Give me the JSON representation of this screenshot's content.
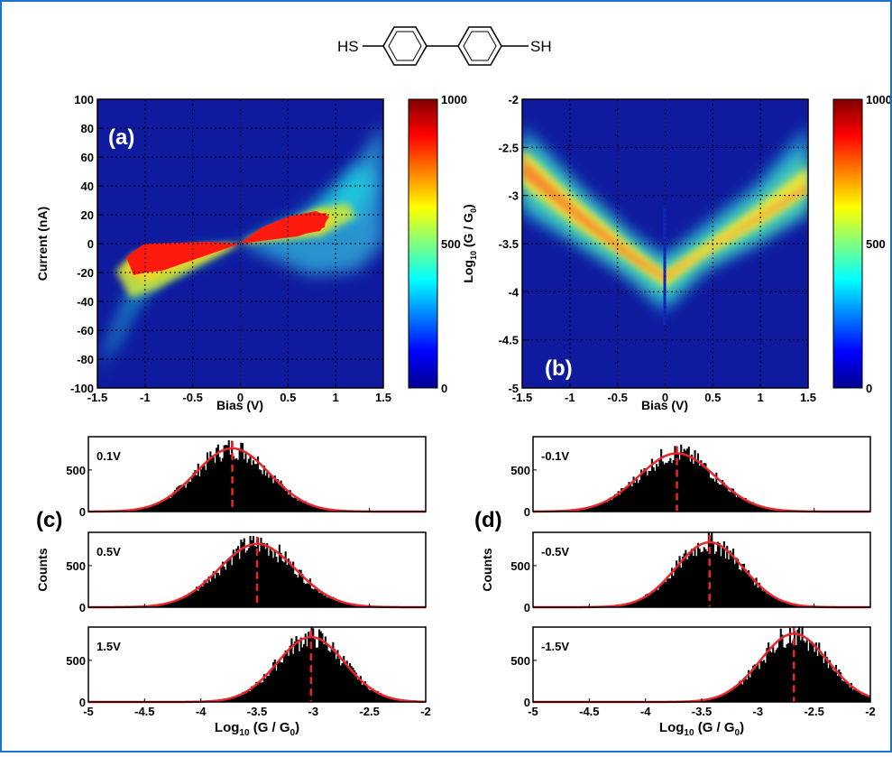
{
  "molecule": {
    "left_group": "HS",
    "right_group": "SH"
  },
  "colors": {
    "frame": "#1a73c8",
    "hist_fill": "#000000",
    "fit_line": "#e8262b"
  },
  "chart_data": [
    {
      "id": "a",
      "type": "heatmap",
      "panel_label": "(a)",
      "xlabel": "Bias (V)",
      "ylabel": "Current (nA)",
      "xlim": [
        -1.5,
        1.5
      ],
      "ylim": [
        -100,
        100
      ],
      "xticks": [
        "-1.5",
        "-1",
        "-0.5",
        "0",
        "0.5",
        "1",
        "1.5"
      ],
      "yticks": [
        "-100",
        "-80",
        "-60",
        "-40",
        "-20",
        "0",
        "20",
        "40",
        "60",
        "80",
        "100"
      ],
      "grid": true,
      "colorbar": {
        "min": 0,
        "max": 1000,
        "ticks": [
          "0",
          "500",
          "1000"
        ],
        "colormap": "jet"
      }
    },
    {
      "id": "b",
      "type": "heatmap",
      "panel_label": "(b)",
      "xlabel": "Bias (V)",
      "ylabel_main": "Log",
      "ylabel_sub": "10",
      "ylabel_rest": " (G / G",
      "ylabel_sub2": "0",
      "ylabel_end": ")",
      "xlim": [
        -1.5,
        1.5
      ],
      "ylim": [
        -5,
        -2
      ],
      "xticks": [
        "-1.5",
        "-1",
        "-0.5",
        "0",
        "0.5",
        "1",
        "1.5"
      ],
      "yticks": [
        "-5",
        "-4.5",
        "-4",
        "-3.5",
        "-3",
        "-2.5",
        "-2"
      ],
      "grid": true,
      "colorbar": {
        "min": 0,
        "max": 1000,
        "ticks": [
          "0",
          "500",
          "1000"
        ],
        "colormap": "jet"
      }
    },
    {
      "id": "c",
      "type": "histogram",
      "panel_label": "(c)",
      "ylabel": "Counts",
      "xlabel_main": "Log",
      "xlabel_sub": "10",
      "xlabel_rest": " (G / G",
      "xlabel_sub2": "0",
      "xlabel_end": ")",
      "xlim": [
        -5,
        -2
      ],
      "ylim": [
        0,
        900
      ],
      "xticks": [
        "-5",
        "-4.5",
        "-4",
        "-3.5",
        "-3",
        "-2.5",
        "-2"
      ],
      "yticks": [
        "0",
        "500"
      ],
      "subplots": [
        {
          "bias_label": "0.1V",
          "peak": -3.72,
          "sigma": 0.33,
          "amplitude": 760
        },
        {
          "bias_label": "0.5V",
          "peak": -3.5,
          "sigma": 0.34,
          "amplitude": 760
        },
        {
          "bias_label": "1.5V",
          "peak": -3.02,
          "sigma": 0.3,
          "amplitude": 780
        }
      ]
    },
    {
      "id": "d",
      "type": "histogram",
      "panel_label": "(d)",
      "ylabel": "Counts",
      "xlabel_main": "Log",
      "xlabel_sub": "10",
      "xlabel_rest": " (G / G",
      "xlabel_sub2": "0",
      "xlabel_end": ")",
      "xlim": [
        -5,
        -2
      ],
      "ylim": [
        0,
        900
      ],
      "xticks": [
        "-5",
        "-4.5",
        "-4",
        "-3.5",
        "-3",
        "-2.5",
        "-2"
      ],
      "yticks": [
        "0",
        "500"
      ],
      "subplots": [
        {
          "bias_label": "-0.1V",
          "peak": -3.72,
          "sigma": 0.34,
          "amplitude": 700
        },
        {
          "bias_label": "-0.5V",
          "peak": -3.43,
          "sigma": 0.3,
          "amplitude": 780
        },
        {
          "bias_label": "-1.5V",
          "peak": -2.68,
          "sigma": 0.3,
          "amplitude": 820
        }
      ]
    }
  ]
}
